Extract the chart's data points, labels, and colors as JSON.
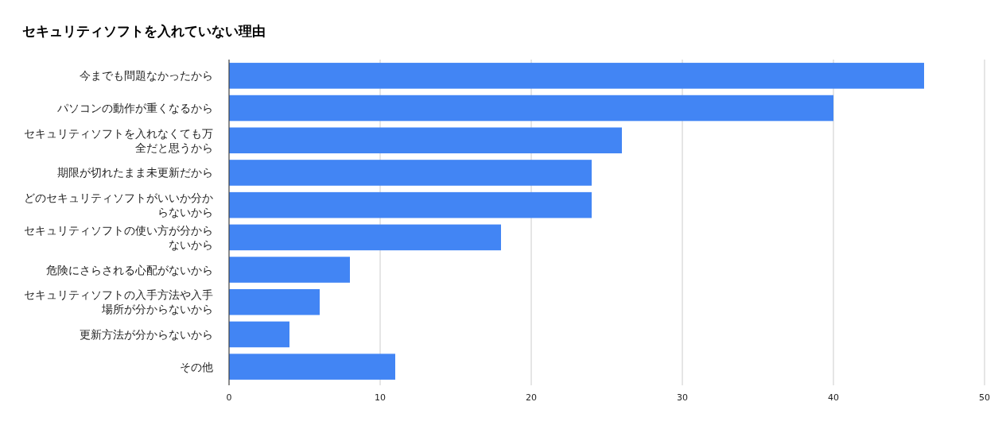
{
  "chart_data": {
    "type": "bar",
    "orientation": "horizontal",
    "title": "セキュリティソフトを入れていない理由",
    "categories": [
      "今までも問題なかったから",
      "パソコンの動作が重くなるから",
      "セキュリティソフトを入れなくても万全だと思うから",
      "期限が切れたまま未更新だから",
      "どのセキュリティソフトがいいか分からないから",
      "セキュリティソフトの使い方が分からないから",
      "危険にさらされる心配がないから",
      "セキュリティソフトの入手方法や入手場所が分からないから",
      "更新方法が分からないから",
      "その他"
    ],
    "values": [
      46,
      40,
      26,
      24,
      24,
      18,
      8,
      6,
      4,
      11
    ],
    "color": "#4285f4",
    "xlim": [
      0,
      50
    ],
    "xticks": [
      0,
      10,
      20,
      30,
      40,
      50
    ],
    "grid": "x"
  }
}
